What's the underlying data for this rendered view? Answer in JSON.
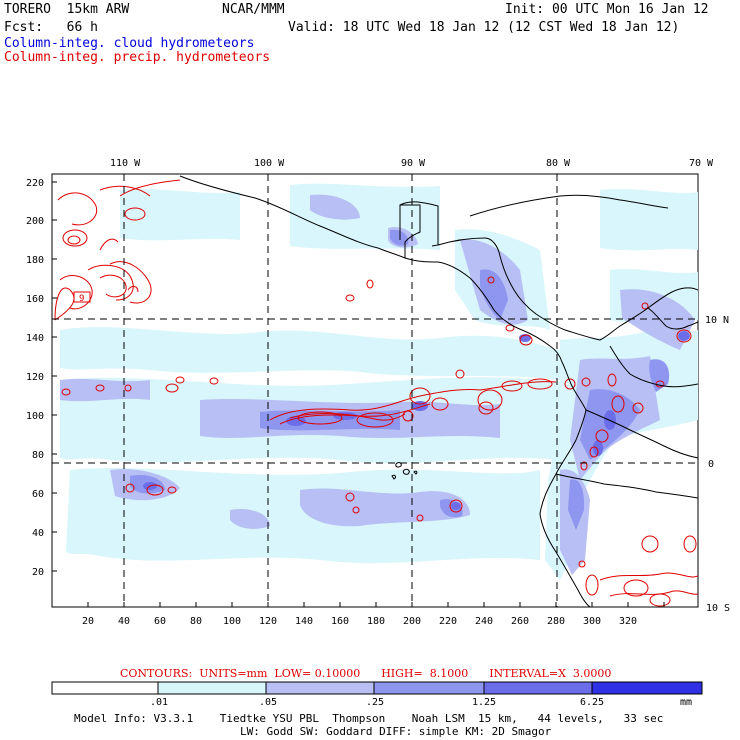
{
  "header": {
    "model": "TORERO  15km ARW",
    "org": "NCAR/MMM",
    "init": "Init: 00 UTC Mon 16 Jan 12",
    "fcst": "Fcst:   66 h",
    "valid": "Valid: 18 UTC Wed 18 Jan 12 (12 CST Wed 18 Jan 12)",
    "field_cloud": "Column-integ. cloud hydrometeors",
    "field_precip": "Column-integ. precip. hydrometeors"
  },
  "colors": {
    "cloud_text": "#0000e0",
    "precip_text": "#e00000",
    "shade_1": "#d8f6fb",
    "shade_2": "#b7bff5",
    "shade_3": "#8e96ef",
    "shade_4": "#6c6ee9",
    "shade_5": "#3030e6"
  },
  "map": {
    "top_lon_labels": [
      "110 W",
      "100 W",
      "90 W",
      "80 W",
      "70 W"
    ],
    "right_lat_labels": [
      "10 N",
      "0",
      "10 S"
    ],
    "x_ticks": [
      "20",
      "40",
      "60",
      "80",
      "100",
      "120",
      "140",
      "160",
      "180",
      "200",
      "220",
      "240",
      "260",
      "280",
      "300",
      "320"
    ],
    "y_ticks": [
      "220",
      "200",
      "180",
      "160",
      "140",
      "120",
      "100",
      "80",
      "60",
      "40",
      "20"
    ],
    "label_9": "9"
  },
  "contours_info": "CONTOURS:  UNITS=mm  LOW= 0.10000      HIGH=  8.1000      INTERVAL=X  3.0000",
  "colorbar": {
    "labels": [
      ".01",
      ".05",
      ".25",
      "1.25",
      "6.25"
    ],
    "unit": "mm"
  },
  "footer": {
    "line1": "Model Info: V3.3.1    Tiedtke YSU PBL  Thompson    Noah LSM  15 km,   44 levels,   33 sec",
    "line2": "LW: Godd SW: Goddard DIFF: simple KM: 2D Smagor"
  }
}
